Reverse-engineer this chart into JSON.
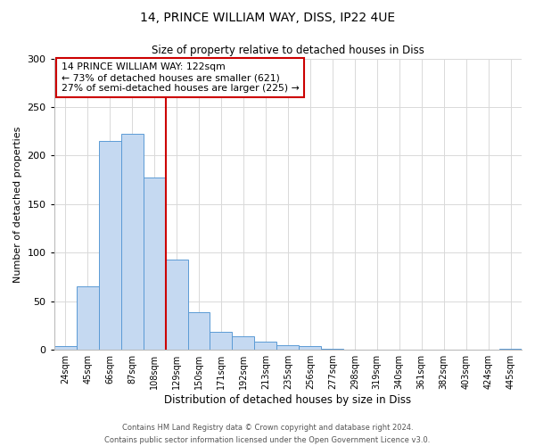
{
  "title_line1": "14, PRINCE WILLIAM WAY, DISS, IP22 4UE",
  "title_line2": "Size of property relative to detached houses in Diss",
  "xlabel": "Distribution of detached houses by size in Diss",
  "ylabel": "Number of detached properties",
  "bar_labels": [
    "24sqm",
    "45sqm",
    "66sqm",
    "87sqm",
    "108sqm",
    "129sqm",
    "150sqm",
    "171sqm",
    "192sqm",
    "213sqm",
    "235sqm",
    "256sqm",
    "277sqm",
    "298sqm",
    "319sqm",
    "340sqm",
    "361sqm",
    "382sqm",
    "403sqm",
    "424sqm",
    "445sqm"
  ],
  "bar_values": [
    4,
    65,
    215,
    222,
    177,
    93,
    39,
    18,
    14,
    8,
    5,
    4,
    1,
    0,
    0,
    0,
    0,
    0,
    0,
    0,
    1
  ],
  "bar_color": "#c5d9f1",
  "bar_edge_color": "#5b9bd5",
  "highlight_line_color": "#cc0000",
  "annotation_title": "14 PRINCE WILLIAM WAY: 122sqm",
  "annotation_line1": "← 73% of detached houses are smaller (621)",
  "annotation_line2": "27% of semi-detached houses are larger (225) →",
  "annotation_box_color": "#ffffff",
  "annotation_box_edge_color": "#cc0000",
  "ylim": [
    0,
    300
  ],
  "yticks": [
    0,
    50,
    100,
    150,
    200,
    250,
    300
  ],
  "footer_line1": "Contains HM Land Registry data © Crown copyright and database right 2024.",
  "footer_line2": "Contains public sector information licensed under the Open Government Licence v3.0.",
  "background_color": "#ffffff",
  "grid_color": "#d9d9d9"
}
